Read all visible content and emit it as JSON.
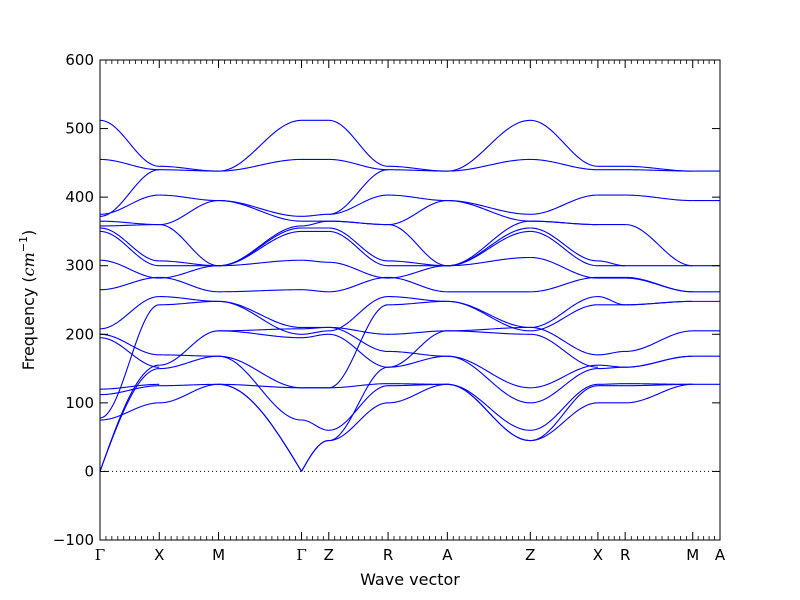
{
  "chart_data": {
    "type": "line",
    "title": "",
    "xlabel": "Wave vector",
    "ylabel": "Frequency",
    "ylabel_unit_base": "cm",
    "ylabel_unit_exp": "−1",
    "ylim": [
      -100,
      600
    ],
    "yticks": [
      -100,
      0,
      100,
      200,
      300,
      400,
      500,
      600
    ],
    "line_color": "#0000ff",
    "zero_line": true,
    "grid": false,
    "legend": "none",
    "high_symmetry_points": [
      {
        "label": "Γ",
        "x": 0.0
      },
      {
        "label": "X",
        "x": 0.5
      },
      {
        "label": "M",
        "x": 1.0
      },
      {
        "label": "Γ",
        "x": 1.7
      },
      {
        "label": "Z",
        "x": 1.93
      },
      {
        "label": "R",
        "x": 2.43
      },
      {
        "label": "A",
        "x": 2.93
      },
      {
        "label": "Z",
        "x": 3.63
      },
      {
        "label": "X",
        "x": 4.2
      },
      {
        "label": "R",
        "x": 4.43
      },
      {
        "label": "M",
        "x": 5.0
      },
      {
        "label": "A",
        "x": 5.23
      }
    ],
    "xlim": [
      0,
      5.23
    ],
    "segments": [
      {
        "from": "Γ",
        "to": "X",
        "x0": 0.0,
        "x1": 0.5,
        "bands": [
          [
            0,
            150
          ],
          [
            0,
            155
          ],
          [
            75,
            100
          ],
          [
            78,
            243
          ],
          [
            112,
            125
          ],
          [
            120,
            127
          ],
          [
            195,
            152
          ],
          [
            200,
            170
          ],
          [
            208,
            255
          ],
          [
            265,
            283
          ],
          [
            308,
            282
          ],
          [
            350,
            300
          ],
          [
            355,
            307
          ],
          [
            358,
            360
          ],
          [
            365,
            360
          ],
          [
            372,
            440
          ],
          [
            375,
            403
          ],
          [
            455,
            440
          ],
          [
            512,
            445
          ]
        ]
      },
      {
        "from": "X",
        "to": "M",
        "x0": 0.5,
        "x1": 1.0,
        "bands": [
          [
            100,
            127
          ],
          [
            125,
            127
          ],
          [
            150,
            168
          ],
          [
            155,
            205
          ],
          [
            170,
            168
          ],
          [
            243,
            248
          ],
          [
            255,
            248
          ],
          [
            283,
            262
          ],
          [
            282,
            300
          ],
          [
            300,
            300
          ],
          [
            307,
            300
          ],
          [
            360,
            300
          ],
          [
            360,
            395
          ],
          [
            403,
            395
          ],
          [
            440,
            438
          ],
          [
            445,
            438
          ]
        ]
      },
      {
        "from": "M",
        "to": "Γ",
        "x0": 1.0,
        "x1": 1.7,
        "bands": [
          [
            127,
            0
          ],
          [
            127,
            0
          ],
          [
            127,
            122
          ],
          [
            168,
            75
          ],
          [
            168,
            122
          ],
          [
            205,
            195
          ],
          [
            205,
            208
          ],
          [
            248,
            200
          ],
          [
            248,
            210
          ],
          [
            262,
            265
          ],
          [
            300,
            308
          ],
          [
            300,
            350
          ],
          [
            300,
            355
          ],
          [
            300,
            358
          ],
          [
            395,
            365
          ],
          [
            395,
            372
          ],
          [
            438,
            455
          ],
          [
            438,
            512
          ]
        ]
      },
      {
        "from": "Γ",
        "to": "Z",
        "x0": 1.7,
        "x1": 1.93,
        "bands": [
          [
            0,
            45
          ],
          [
            0,
            45
          ],
          [
            75,
            60
          ],
          [
            122,
            122
          ],
          [
            122,
            122
          ],
          [
            195,
            200
          ],
          [
            200,
            205
          ],
          [
            208,
            210
          ],
          [
            210,
            210
          ],
          [
            265,
            262
          ],
          [
            308,
            305
          ],
          [
            350,
            350
          ],
          [
            355,
            355
          ],
          [
            358,
            365
          ],
          [
            365,
            365
          ],
          [
            372,
            375
          ],
          [
            455,
            455
          ],
          [
            512,
            512
          ]
        ]
      },
      {
        "from": "Z",
        "to": "R",
        "x0": 1.93,
        "x1": 2.43,
        "bands": [
          [
            45,
            100
          ],
          [
            45,
            152
          ],
          [
            60,
            125
          ],
          [
            122,
            128
          ],
          [
            122,
            243
          ],
          [
            200,
            152
          ],
          [
            205,
            255
          ],
          [
            210,
            175
          ],
          [
            210,
            200
          ],
          [
            262,
            283
          ],
          [
            305,
            282
          ],
          [
            350,
            300
          ],
          [
            355,
            307
          ],
          [
            365,
            360
          ],
          [
            365,
            360
          ],
          [
            375,
            440
          ],
          [
            375,
            403
          ],
          [
            455,
            440
          ],
          [
            512,
            445
          ]
        ]
      },
      {
        "from": "R",
        "to": "A",
        "x0": 2.43,
        "x1": 2.93,
        "bands": [
          [
            100,
            127
          ],
          [
            128,
            127
          ],
          [
            125,
            127
          ],
          [
            152,
            168
          ],
          [
            152,
            205
          ],
          [
            175,
            168
          ],
          [
            200,
            205
          ],
          [
            243,
            248
          ],
          [
            255,
            248
          ],
          [
            283,
            262
          ],
          [
            282,
            300
          ],
          [
            300,
            300
          ],
          [
            307,
            300
          ],
          [
            360,
            300
          ],
          [
            360,
            395
          ],
          [
            403,
            395
          ],
          [
            440,
            438
          ],
          [
            445,
            438
          ]
        ]
      },
      {
        "from": "A",
        "to": "Z",
        "x0": 2.93,
        "x1": 3.63,
        "bands": [
          [
            127,
            45
          ],
          [
            127,
            45
          ],
          [
            127,
            60
          ],
          [
            168,
            100
          ],
          [
            168,
            122
          ],
          [
            205,
            200
          ],
          [
            205,
            210
          ],
          [
            248,
            205
          ],
          [
            248,
            210
          ],
          [
            262,
            262
          ],
          [
            300,
            312
          ],
          [
            300,
            350
          ],
          [
            300,
            355
          ],
          [
            300,
            365
          ],
          [
            395,
            365
          ],
          [
            395,
            375
          ],
          [
            438,
            455
          ],
          [
            438,
            512
          ]
        ]
      },
      {
        "from": "Z",
        "to": "X",
        "x0": 3.63,
        "x1": 4.2,
        "bands": [
          [
            45,
            100
          ],
          [
            45,
            125
          ],
          [
            60,
            127
          ],
          [
            100,
            150
          ],
          [
            122,
            155
          ],
          [
            200,
            152
          ],
          [
            205,
            243
          ],
          [
            210,
            170
          ],
          [
            210,
            255
          ],
          [
            262,
            283
          ],
          [
            312,
            282
          ],
          [
            350,
            300
          ],
          [
            355,
            307
          ],
          [
            365,
            360
          ],
          [
            365,
            360
          ],
          [
            375,
            403
          ],
          [
            455,
            440
          ],
          [
            512,
            445
          ]
        ]
      },
      {
        "from": "X",
        "to": "R",
        "x0": 4.2,
        "x1": 4.43,
        "bands": [
          [
            100,
            100
          ],
          [
            125,
            125
          ],
          [
            127,
            128
          ],
          [
            150,
            152
          ],
          [
            155,
            152
          ],
          [
            170,
            175
          ],
          [
            243,
            243
          ],
          [
            255,
            243
          ],
          [
            283,
            283
          ],
          [
            282,
            282
          ],
          [
            300,
            300
          ],
          [
            307,
            300
          ],
          [
            360,
            360
          ],
          [
            403,
            403
          ],
          [
            440,
            440
          ],
          [
            445,
            445
          ]
        ]
      },
      {
        "from": "R",
        "to": "M",
        "x0": 4.43,
        "x1": 5.0,
        "bands": [
          [
            100,
            127
          ],
          [
            125,
            127
          ],
          [
            128,
            127
          ],
          [
            152,
            168
          ],
          [
            152,
            168
          ],
          [
            175,
            205
          ],
          [
            243,
            248
          ],
          [
            243,
            248
          ],
          [
            283,
            262
          ],
          [
            282,
            262
          ],
          [
            300,
            300
          ],
          [
            360,
            300
          ],
          [
            403,
            395
          ],
          [
            440,
            438
          ],
          [
            445,
            438
          ]
        ]
      },
      {
        "from": "M",
        "to": "A",
        "x0": 5.0,
        "x1": 5.23,
        "bands": [
          [
            127,
            127
          ],
          [
            168,
            168
          ],
          [
            205,
            205
          ],
          [
            248,
            248
          ],
          [
            262,
            262
          ],
          [
            300,
            300
          ],
          [
            395,
            395
          ],
          [
            438,
            438
          ]
        ]
      }
    ]
  }
}
